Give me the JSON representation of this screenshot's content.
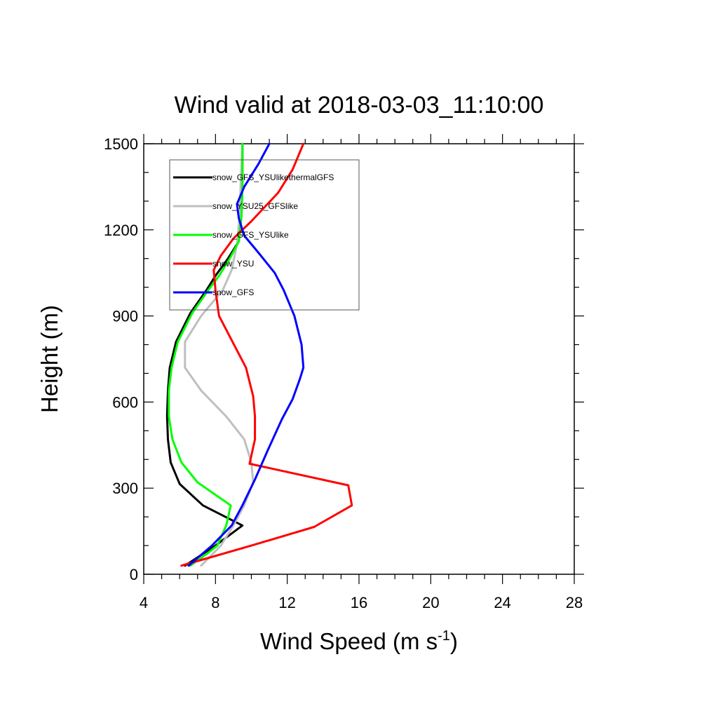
{
  "chart_data": {
    "type": "line",
    "title": "Wind valid at 2018-03-03_11:10:00",
    "xlabel": {
      "main": "Wind Speed (m s",
      "sup": "-1",
      "tail": ")"
    },
    "ylabel": "Height (m)",
    "xlim": [
      4,
      28
    ],
    "ylim": [
      0,
      1500
    ],
    "xticks": [
      4,
      8,
      12,
      16,
      20,
      24,
      28
    ],
    "yticks": [
      0,
      300,
      600,
      900,
      1200,
      1500
    ],
    "grid": false,
    "legend_position": "top-left",
    "series": [
      {
        "name": "snow_GFS_YSUlikethermalGFS",
        "color": "#000000",
        "points": [
          [
            6.3,
            30
          ],
          [
            8.0,
            100
          ],
          [
            9.5,
            170
          ],
          [
            7.3,
            240
          ],
          [
            6.0,
            315
          ],
          [
            5.5,
            390
          ],
          [
            5.35,
            470
          ],
          [
            5.3,
            550
          ],
          [
            5.35,
            640
          ],
          [
            5.45,
            720
          ],
          [
            5.8,
            810
          ],
          [
            6.6,
            910
          ],
          [
            7.5,
            990
          ],
          [
            8.0,
            1040
          ],
          [
            8.7,
            1100
          ],
          [
            9.3,
            1160
          ],
          [
            9.45,
            1250
          ],
          [
            9.5,
            1350
          ],
          [
            9.5,
            1500
          ]
        ]
      },
      {
        "name": "snow_YSU25_GFSlike",
        "color": "#bfbfbf",
        "points": [
          [
            7.2,
            30
          ],
          [
            8.3,
            100
          ],
          [
            9.0,
            170
          ],
          [
            9.6,
            240
          ],
          [
            10.1,
            320
          ],
          [
            10.0,
            390
          ],
          [
            9.6,
            470
          ],
          [
            8.6,
            550
          ],
          [
            7.2,
            640
          ],
          [
            6.3,
            720
          ],
          [
            6.3,
            810
          ],
          [
            7.2,
            900
          ],
          [
            8.4,
            990
          ],
          [
            8.9,
            1060
          ],
          [
            9.2,
            1150
          ],
          [
            9.35,
            1250
          ],
          [
            9.4,
            1350
          ],
          [
            9.5,
            1500
          ]
        ]
      },
      {
        "name": "snow_GFS_YSUlike",
        "color": "#00ff00",
        "points": [
          [
            6.6,
            30
          ],
          [
            7.5,
            70
          ],
          [
            8.1,
            100
          ],
          [
            8.6,
            170
          ],
          [
            8.85,
            240
          ],
          [
            7.0,
            320
          ],
          [
            6.1,
            390
          ],
          [
            5.6,
            470
          ],
          [
            5.4,
            550
          ],
          [
            5.4,
            640
          ],
          [
            5.55,
            720
          ],
          [
            5.9,
            810
          ],
          [
            6.7,
            910
          ],
          [
            7.6,
            990
          ],
          [
            8.2,
            1040
          ],
          [
            8.8,
            1100
          ],
          [
            9.3,
            1160
          ],
          [
            9.45,
            1250
          ],
          [
            9.5,
            1350
          ],
          [
            9.5,
            1500
          ]
        ]
      },
      {
        "name": "snow_YSU",
        "color": "#ff0000",
        "points": [
          [
            6.1,
            30
          ],
          [
            7.5,
            55
          ],
          [
            10.0,
            100
          ],
          [
            13.5,
            165
          ],
          [
            15.6,
            240
          ],
          [
            15.4,
            310
          ],
          [
            9.9,
            385
          ],
          [
            10.2,
            470
          ],
          [
            10.2,
            550
          ],
          [
            10.1,
            620
          ],
          [
            9.7,
            720
          ],
          [
            8.2,
            900
          ],
          [
            8.0,
            990
          ],
          [
            7.9,
            1060
          ],
          [
            8.3,
            1110
          ],
          [
            9.0,
            1170
          ],
          [
            10.0,
            1230
          ],
          [
            11.5,
            1330
          ],
          [
            12.3,
            1410
          ],
          [
            12.9,
            1500
          ]
        ]
      },
      {
        "name": "snow_GFS",
        "color": "#0000ff",
        "points": [
          [
            6.5,
            30
          ],
          [
            7.8,
            100
          ],
          [
            8.9,
            170
          ],
          [
            9.5,
            240
          ],
          [
            10.2,
            330
          ],
          [
            10.9,
            430
          ],
          [
            11.7,
            540
          ],
          [
            12.3,
            610
          ],
          [
            12.7,
            680
          ],
          [
            12.9,
            720
          ],
          [
            12.8,
            800
          ],
          [
            12.4,
            900
          ],
          [
            11.8,
            990
          ],
          [
            11.3,
            1050
          ],
          [
            10.4,
            1120
          ],
          [
            9.6,
            1180
          ],
          [
            9.3,
            1240
          ],
          [
            9.2,
            1290
          ],
          [
            9.6,
            1350
          ],
          [
            10.4,
            1430
          ],
          [
            11.0,
            1500
          ]
        ]
      }
    ]
  }
}
